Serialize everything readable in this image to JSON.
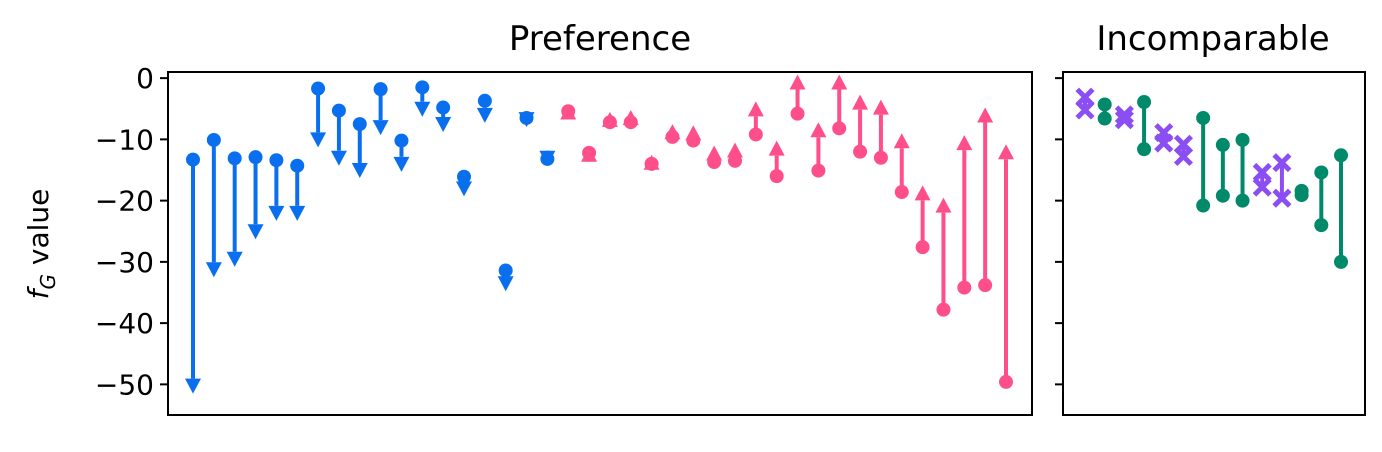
{
  "chart_data": [
    {
      "type": "arrow-dumbbell",
      "title": "Preference",
      "ylabel": "f_G value",
      "ylim": [
        -55,
        1
      ],
      "yticks": [
        0,
        -10,
        -20,
        -30,
        -40,
        -50
      ],
      "ytick_labels": [
        "0",
        "−10",
        "−20",
        "−30",
        "−40",
        "−50"
      ],
      "xticks": [],
      "grid": false,
      "colors": {
        "decrease": "#0a6fef",
        "increase": "#ff4f8b"
      },
      "pairs": [
        {
          "start": -13.3,
          "end": -51.5
        },
        {
          "start": -10.1,
          "end": -32.5
        },
        {
          "start": -13.1,
          "end": -30.8
        },
        {
          "start": -12.9,
          "end": -26.3
        },
        {
          "start": -13.4,
          "end": -23.3
        },
        {
          "start": -14.3,
          "end": -23.3
        },
        {
          "start": -1.7,
          "end": -11.3
        },
        {
          "start": -5.3,
          "end": -14.3
        },
        {
          "start": -7.5,
          "end": -16.3
        },
        {
          "start": -1.8,
          "end": -9.3
        },
        {
          "start": -10.2,
          "end": -15.3
        },
        {
          "start": -1.5,
          "end": -6.3
        },
        {
          "start": -4.8,
          "end": -8.8
        },
        {
          "start": -16.1,
          "end": -19.3
        },
        {
          "start": -3.7,
          "end": -7.3
        },
        {
          "start": -31.4,
          "end": -34.8
        },
        {
          "start": -6.5,
          "end": -8.0
        },
        {
          "start": -13.2,
          "end": -14.3
        },
        {
          "start": -5.4,
          "end": -4.3
        },
        {
          "start": -12.2,
          "end": -11.2
        },
        {
          "start": -7.2,
          "end": -5.5
        },
        {
          "start": -7.2,
          "end": -5.2
        },
        {
          "start": -14.0,
          "end": -12.5
        },
        {
          "start": -9.6,
          "end": -7.5
        },
        {
          "start": -10.2,
          "end": -7.7
        },
        {
          "start": -13.7,
          "end": -11.0
        },
        {
          "start": -13.5,
          "end": -10.5
        },
        {
          "start": -9.2,
          "end": -3.8
        },
        {
          "start": -16.0,
          "end": -10.2
        },
        {
          "start": -5.8,
          "end": 0.6
        },
        {
          "start": -15.1,
          "end": -7.2
        },
        {
          "start": -8.2,
          "end": 0.6
        },
        {
          "start": -12.0,
          "end": -2.7
        },
        {
          "start": -13.0,
          "end": -3.5
        },
        {
          "start": -18.6,
          "end": -9.0
        },
        {
          "start": -27.6,
          "end": -17.5
        },
        {
          "start": -37.8,
          "end": -19.5
        },
        {
          "start": -34.2,
          "end": -9.3
        },
        {
          "start": -33.8,
          "end": -4.8
        },
        {
          "start": -49.6,
          "end": -10.8
        }
      ]
    },
    {
      "type": "dumbbell",
      "title": "Incomparable",
      "ylim": [
        -55,
        1
      ],
      "yticks": [
        0,
        -10,
        -20,
        -30,
        -40,
        -50
      ],
      "xticks": [],
      "grid": false,
      "colors": {
        "cross": "#8b4ef2",
        "dot": "#008a6a"
      },
      "pairs": [
        {
          "a": -3.1,
          "b": -5.2,
          "marker": "cross"
        },
        {
          "a": -4.3,
          "b": -6.6,
          "marker": "dot"
        },
        {
          "a": -6.0,
          "b": -6.8,
          "marker": "cross"
        },
        {
          "a": -3.9,
          "b": -11.6,
          "marker": "dot"
        },
        {
          "a": -8.9,
          "b": -10.6,
          "marker": "cross"
        },
        {
          "a": -10.8,
          "b": -12.8,
          "marker": "cross"
        },
        {
          "a": -6.5,
          "b": -20.8,
          "marker": "dot"
        },
        {
          "a": -10.9,
          "b": -19.2,
          "marker": "dot"
        },
        {
          "a": -10.1,
          "b": -20.0,
          "marker": "dot"
        },
        {
          "a": -15.4,
          "b": -17.8,
          "marker": "cross"
        },
        {
          "a": -13.8,
          "b": -19.6,
          "marker": "cross"
        },
        {
          "a": -18.4,
          "b": -19.1,
          "marker": "dot"
        },
        {
          "a": -15.4,
          "b": -24.0,
          "marker": "dot"
        },
        {
          "a": -12.6,
          "b": -30.0,
          "marker": "dot"
        }
      ]
    }
  ]
}
